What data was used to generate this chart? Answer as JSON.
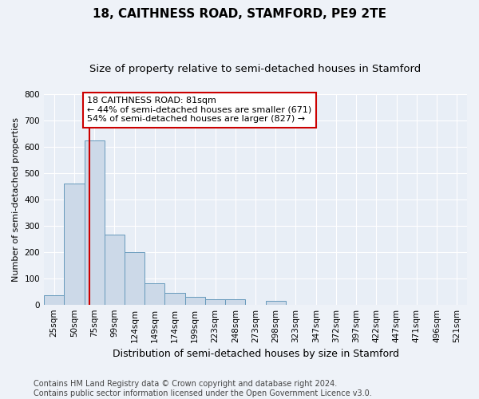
{
  "title": "18, CAITHNESS ROAD, STAMFORD, PE9 2TE",
  "subtitle": "Size of property relative to semi-detached houses in Stamford",
  "xlabel": "Distribution of semi-detached houses by size in Stamford",
  "ylabel": "Number of semi-detached properties",
  "bar_labels": [
    "25sqm",
    "50sqm",
    "75sqm",
    "99sqm",
    "124sqm",
    "149sqm",
    "174sqm",
    "199sqm",
    "223sqm",
    "248sqm",
    "273sqm",
    "298sqm",
    "323sqm",
    "347sqm",
    "372sqm",
    "397sqm",
    "422sqm",
    "447sqm",
    "471sqm",
    "496sqm",
    "521sqm"
  ],
  "bar_heights": [
    35,
    460,
    625,
    265,
    200,
    80,
    45,
    30,
    20,
    20,
    0,
    15,
    0,
    0,
    0,
    0,
    0,
    0,
    0,
    0,
    0
  ],
  "bar_color": "#ccd9e8",
  "bar_edge_color": "#6699bb",
  "background_color": "#e8eef6",
  "grid_color": "#ffffff",
  "fig_background": "#eef2f8",
  "ylim": [
    0,
    800
  ],
  "yticks": [
    0,
    100,
    200,
    300,
    400,
    500,
    600,
    700,
    800
  ],
  "property_line_color": "#cc0000",
  "property_line_x": 1.8,
  "annotation_text": "18 CAITHNESS ROAD: 81sqm\n← 44% of semi-detached houses are smaller (671)\n54% of semi-detached houses are larger (827) →",
  "annotation_box_color": "#ffffff",
  "annotation_border_color": "#cc0000",
  "footer_line1": "Contains HM Land Registry data © Crown copyright and database right 2024.",
  "footer_line2": "Contains public sector information licensed under the Open Government Licence v3.0.",
  "title_fontsize": 11,
  "subtitle_fontsize": 9.5,
  "xlabel_fontsize": 9,
  "ylabel_fontsize": 8,
  "tick_fontsize": 7.5,
  "annotation_fontsize": 8,
  "footer_fontsize": 7
}
